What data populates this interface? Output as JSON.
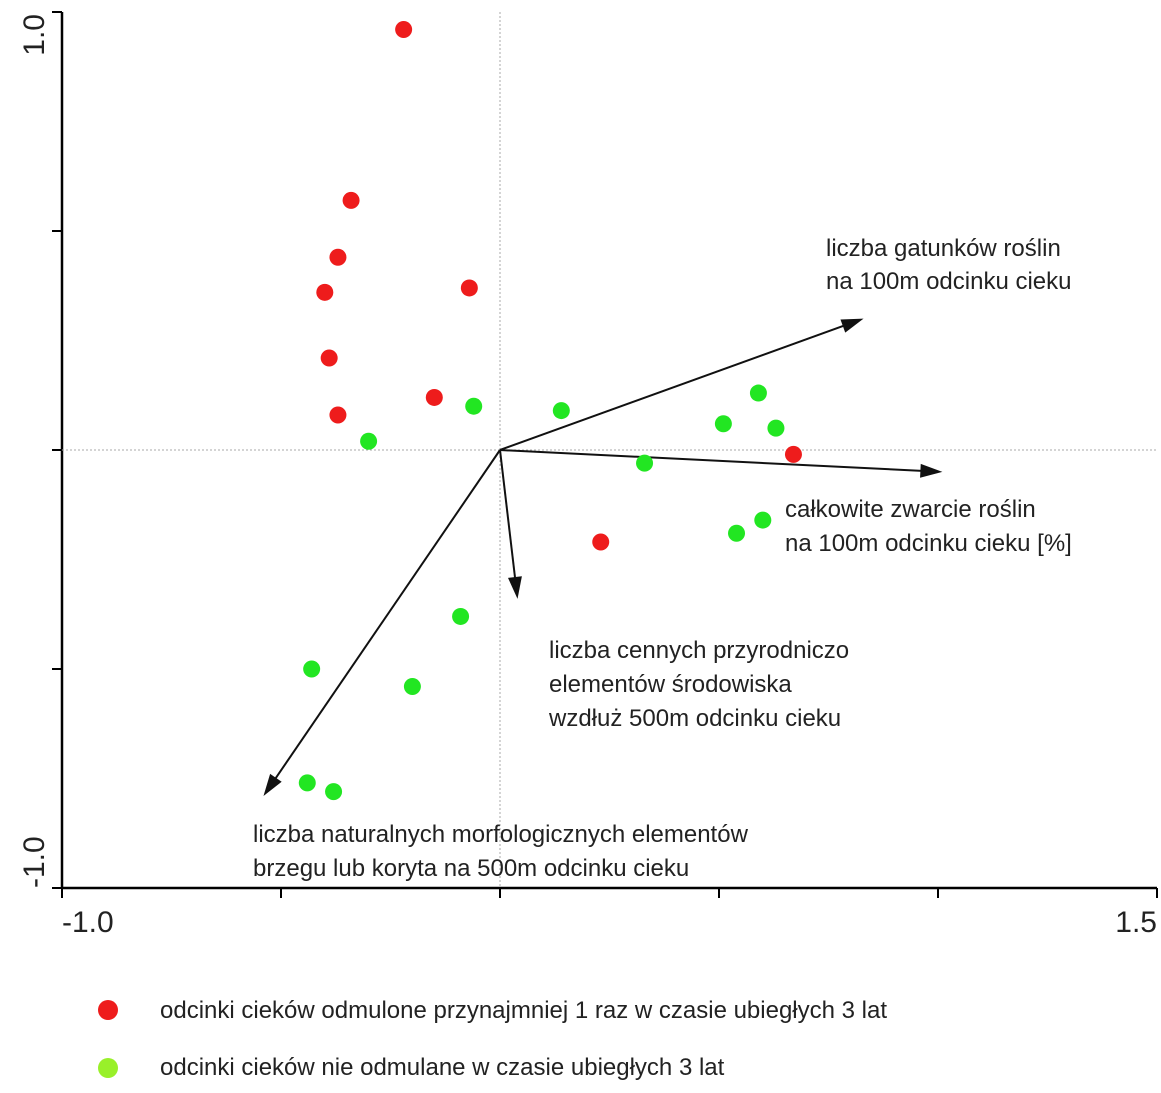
{
  "chart_data": {
    "type": "scatter",
    "subtype": "biplot",
    "xlim": [
      -1.0,
      1.5
    ],
    "ylim": [
      -1.0,
      1.0
    ],
    "x_tick_labels": [
      "-1.0",
      "1.5"
    ],
    "y_tick_labels": [
      "1.0",
      "-1.0"
    ],
    "x_ticks": [
      -1.0,
      -0.5,
      0.0,
      0.5,
      1.0,
      1.5
    ],
    "y_ticks": [
      -1.0,
      -0.5,
      0.0,
      0.5,
      1.0
    ],
    "origin_lines": true,
    "series": [
      {
        "name": "odcinki cieków odmulone przynajmniej 1 raz w czasie ubiegłych 3 lat",
        "color": "#ee1c1c",
        "points": [
          {
            "x": -0.22,
            "y": 0.96
          },
          {
            "x": -0.34,
            "y": 0.57
          },
          {
            "x": -0.37,
            "y": 0.44
          },
          {
            "x": -0.4,
            "y": 0.36
          },
          {
            "x": -0.07,
            "y": 0.37
          },
          {
            "x": -0.39,
            "y": 0.21
          },
          {
            "x": -0.37,
            "y": 0.08
          },
          {
            "x": -0.15,
            "y": 0.12
          },
          {
            "x": 0.67,
            "y": -0.01
          },
          {
            "x": 0.23,
            "y": -0.21
          }
        ]
      },
      {
        "name": "odcinki cieków nie odmulane w czasie ubiegłych 3 lat",
        "color": "#22e622",
        "points": [
          {
            "x": -0.06,
            "y": 0.1
          },
          {
            "x": 0.14,
            "y": 0.09
          },
          {
            "x": 0.51,
            "y": 0.06
          },
          {
            "x": 0.59,
            "y": 0.13
          },
          {
            "x": 0.63,
            "y": 0.05
          },
          {
            "x": -0.3,
            "y": 0.02
          },
          {
            "x": 0.33,
            "y": -0.03
          },
          {
            "x": 0.6,
            "y": -0.16
          },
          {
            "x": 0.54,
            "y": -0.19
          },
          {
            "x": -0.09,
            "y": -0.38
          },
          {
            "x": -0.43,
            "y": -0.5
          },
          {
            "x": -0.2,
            "y": -0.54
          },
          {
            "x": -0.44,
            "y": -0.76
          },
          {
            "x": -0.38,
            "y": -0.78
          }
        ]
      }
    ],
    "vectors": [
      {
        "x": 0.83,
        "y": 0.3,
        "label_lines": [
          "liczba gatunków roślin",
          "na 100m odcinku cieku"
        ]
      },
      {
        "x": 1.01,
        "y": -0.05,
        "label_lines": [
          "całkowite zwarcie roślin",
          "na 100m odcinku cieku [%]"
        ]
      },
      {
        "x": 0.04,
        "y": -0.34,
        "label_lines": [
          "liczba cennych przyrodniczo",
          "elementów środowiska",
          "wzdłuż 500m odcinku cieku"
        ]
      },
      {
        "x": -0.54,
        "y": -0.79,
        "label_lines": [
          "liczba naturalnych morfologicznych elementów",
          "brzegu lub koryta na 500m odcinku cieku"
        ]
      }
    ],
    "legend": {
      "placement": "bottom-left"
    }
  }
}
